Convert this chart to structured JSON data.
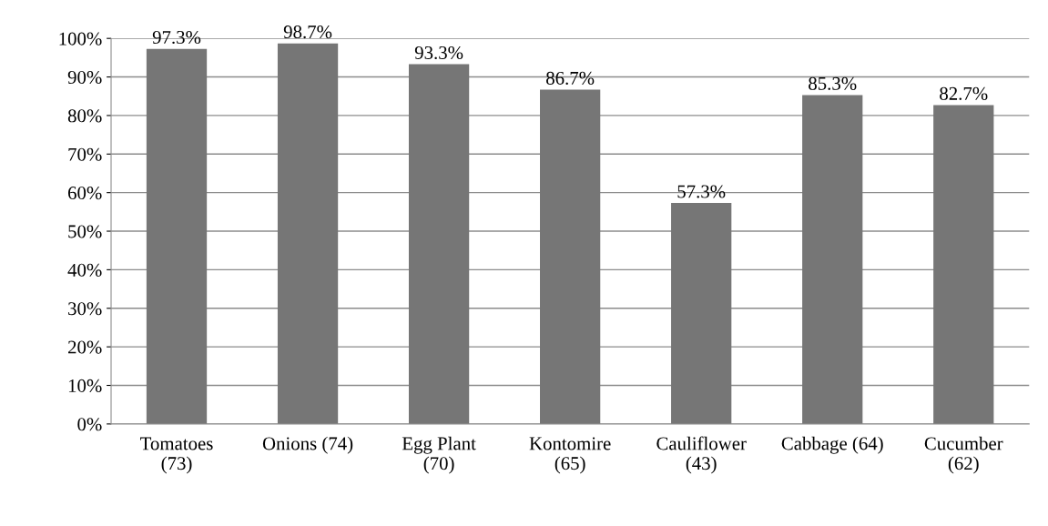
{
  "chart_data": {
    "type": "bar",
    "categories": [
      "Tomatoes\n(73)",
      "Onions (74)",
      "Egg Plant\n(70)",
      "Kontomire\n(65)",
      "Cauliflower\n(43)",
      "Cabbage (64)",
      "Cucumber\n(62)"
    ],
    "values": [
      97.3,
      98.7,
      93.3,
      86.7,
      57.3,
      85.3,
      82.7
    ],
    "value_labels": [
      "97.3%",
      "98.7%",
      "93.3%",
      "86.7%",
      "57.3%",
      "85.3%",
      "82.7%"
    ],
    "color": "#767676",
    "ylim": [
      0,
      100
    ],
    "yticks": [
      {
        "value": 0,
        "label": "0%"
      },
      {
        "value": 10,
        "label": "10%"
      },
      {
        "value": 20,
        "label": "20%"
      },
      {
        "value": 30,
        "label": "30%"
      },
      {
        "value": 40,
        "label": "40%"
      },
      {
        "value": 50,
        "label": "50%"
      },
      {
        "value": 60,
        "label": "60%"
      },
      {
        "value": 70,
        "label": "70%"
      },
      {
        "value": 80,
        "label": "80%"
      },
      {
        "value": 90,
        "label": "90%"
      },
      {
        "value": 100,
        "label": "100%"
      }
    ],
    "grid": "y"
  }
}
